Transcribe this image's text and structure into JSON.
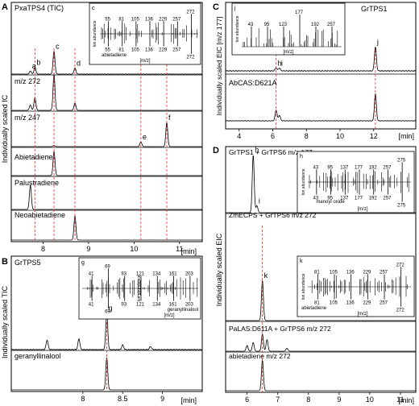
{
  "panels": {
    "A": {
      "letter": "A",
      "ylabel": "Individually scaled IC",
      "xlabel": "[min]",
      "ticks": [
        "8",
        "9",
        "10",
        "11"
      ],
      "inset": {
        "letter": "c",
        "ylabel": "Ion abundance",
        "xlabel": "[m/z]",
        "compound": "abietadiene",
        "top_labels": [
          "55",
          "81",
          "105",
          "136",
          "229",
          "257",
          "272"
        ],
        "bottom_labels": [
          "55",
          "81",
          "105",
          "136",
          "229",
          "257",
          "272"
        ]
      }
    },
    "B": {
      "letter": "B",
      "ylabel": "Individually scaled TIC",
      "xlabel": "[min]",
      "ticks": [
        "8",
        "8.5",
        "9"
      ],
      "inset": {
        "letter": "g",
        "ylabel": "Ion abundance",
        "xlabel": "[m/z]",
        "compound": "geranyllinalool",
        "top_labels": [
          "41",
          "69",
          "93",
          "121",
          "134",
          "161",
          "203"
        ],
        "bottom_labels": [
          "41",
          "69",
          "93",
          "121",
          "134",
          "161",
          "203"
        ]
      }
    },
    "C": {
      "letter": "C",
      "ylabel": "Individually scaled EIC [m/z 177]",
      "xlabel": "[min]",
      "ticks": [
        "4",
        "6",
        "8",
        "10",
        "12"
      ],
      "inset": {
        "letter": "j",
        "ylabel": "Ion abundance",
        "xlabel": "[m/z]",
        "top_labels": [
          "43",
          "95",
          "123",
          "177",
          "192",
          "257"
        ]
      }
    },
    "D": {
      "letter": "D",
      "ylabel": "Individually scaled EIC",
      "xlabel": "[min]",
      "ticks": [
        "6",
        "7",
        "8",
        "9",
        "10",
        "11"
      ],
      "inset_h": {
        "letter": "h",
        "ylabel": "Ion abundance",
        "xlabel": "[m/z]",
        "compound": "manoyl oxide",
        "top_labels": [
          "43",
          "95",
          "137",
          "177",
          "192",
          "257",
          "275"
        ],
        "bottom_labels": [
          "43",
          "95",
          "137",
          "177",
          "192",
          "257",
          "275"
        ]
      },
      "inset_k": {
        "letter": "k",
        "ylabel": "Ion abundance",
        "xlabel": "[m/z]",
        "compound": "abietadiene",
        "top_labels": [
          "81",
          "105",
          "136",
          "229",
          "257",
          "272"
        ],
        "bottom_labels": [
          "81",
          "105",
          "136",
          "229",
          "257",
          "272"
        ]
      }
    }
  },
  "chart_data": [
    {
      "panel": "A",
      "type": "line",
      "xlabel": "[min]",
      "ylabel": "Individually scaled IC",
      "xlim": [
        7.3,
        11.5
      ],
      "series": [
        {
          "name": "PxaTPS4 (TIC)",
          "peaks": [
            {
              "x": 7.72,
              "y": 0.1,
              "label": "a"
            },
            {
              "x": 7.82,
              "y": 0.22,
              "label": "b"
            },
            {
              "x": 8.24,
              "y": 0.75,
              "label": "c"
            },
            {
              "x": 8.7,
              "y": 0.2,
              "label": "d"
            }
          ]
        },
        {
          "name": "m/z 272",
          "peaks": [
            {
              "x": 7.72,
              "y": 0.15
            },
            {
              "x": 7.82,
              "y": 0.35
            },
            {
              "x": 8.24,
              "y": 1.0
            },
            {
              "x": 8.7,
              "y": 0.2
            }
          ]
        },
        {
          "name": "m/z 247",
          "peaks": [
            {
              "x": 8.24,
              "y": 0.05
            },
            {
              "x": 10.15,
              "y": 0.2,
              "label": "e"
            },
            {
              "x": 10.72,
              "y": 1.0,
              "label": "f"
            }
          ]
        },
        {
          "name": "Abietadiene",
          "peaks": [
            {
              "x": 8.24,
              "y": 1.0
            }
          ]
        },
        {
          "name": "Palustradiene",
          "peaks": [
            {
              "x": 7.72,
              "y": 1.0
            }
          ]
        },
        {
          "name": "Neoabietadiene",
          "peaks": [
            {
              "x": 8.7,
              "y": 1.0
            }
          ]
        }
      ]
    },
    {
      "panel": "B",
      "type": "line",
      "xlabel": "[min]",
      "ylabel": "Individually scaled TIC",
      "xlim": [
        7.1,
        9.5
      ],
      "series": [
        {
          "name": "GrTPS5",
          "peaks": [
            {
              "x": 7.55,
              "y": 0.25
            },
            {
              "x": 7.95,
              "y": 0.28
            },
            {
              "x": 8.3,
              "y": 0.95,
              "label": "g"
            },
            {
              "x": 8.5,
              "y": 0.12
            },
            {
              "x": 8.85,
              "y": 0.08
            }
          ]
        },
        {
          "name": "geranyllinalool",
          "peaks": [
            {
              "x": 8.3,
              "y": 1.0
            }
          ]
        }
      ]
    },
    {
      "panel": "C",
      "type": "line",
      "xlabel": "[min]",
      "ylabel": "Individually scaled EIC [m/z 177]",
      "xlim": [
        3.2,
        14.5
      ],
      "series": [
        {
          "name": "GrTPS1",
          "peaks": [
            {
              "x": 6.2,
              "y": 0.12,
              "label": "h"
            },
            {
              "x": 6.4,
              "y": 0.12,
              "label": "i"
            },
            {
              "x": 12.1,
              "y": 1.0,
              "label": "j"
            }
          ]
        },
        {
          "name": "AbCAS:D621A",
          "peaks": [
            {
              "x": 6.2,
              "y": 0.4
            },
            {
              "x": 6.4,
              "y": 0.2
            },
            {
              "x": 12.1,
              "y": 1.0
            }
          ]
        }
      ]
    },
    {
      "panel": "D",
      "type": "line",
      "xlabel": "[min]",
      "ylabel": "Individually scaled EIC",
      "xlim": [
        5.3,
        11.5
      ],
      "series": [
        {
          "name": "GrTPS1 + GrTPS6 m/z 177",
          "peaks": [
            {
              "x": 6.2,
              "y": 1.0,
              "label": "h"
            },
            {
              "x": 6.32,
              "y": 0.12,
              "label": "i"
            }
          ]
        },
        {
          "name": "ZmECPS + GrTPS6 m/z 272",
          "peaks": [
            {
              "x": 6.5,
              "y": 1.0,
              "label": "k"
            }
          ]
        },
        {
          "name": "PaLAS:D611A + GrTPS6 m/z 272",
          "peaks": [
            {
              "x": 6.0,
              "y": 0.2
            },
            {
              "x": 6.2,
              "y": 0.3
            },
            {
              "x": 6.5,
              "y": 0.6
            },
            {
              "x": 6.65,
              "y": 0.4
            },
            {
              "x": 7.3,
              "y": 0.1
            }
          ]
        },
        {
          "name": "abietadiene m/z 272",
          "peaks": [
            {
              "x": 6.5,
              "y": 1.0
            }
          ]
        }
      ]
    }
  ]
}
